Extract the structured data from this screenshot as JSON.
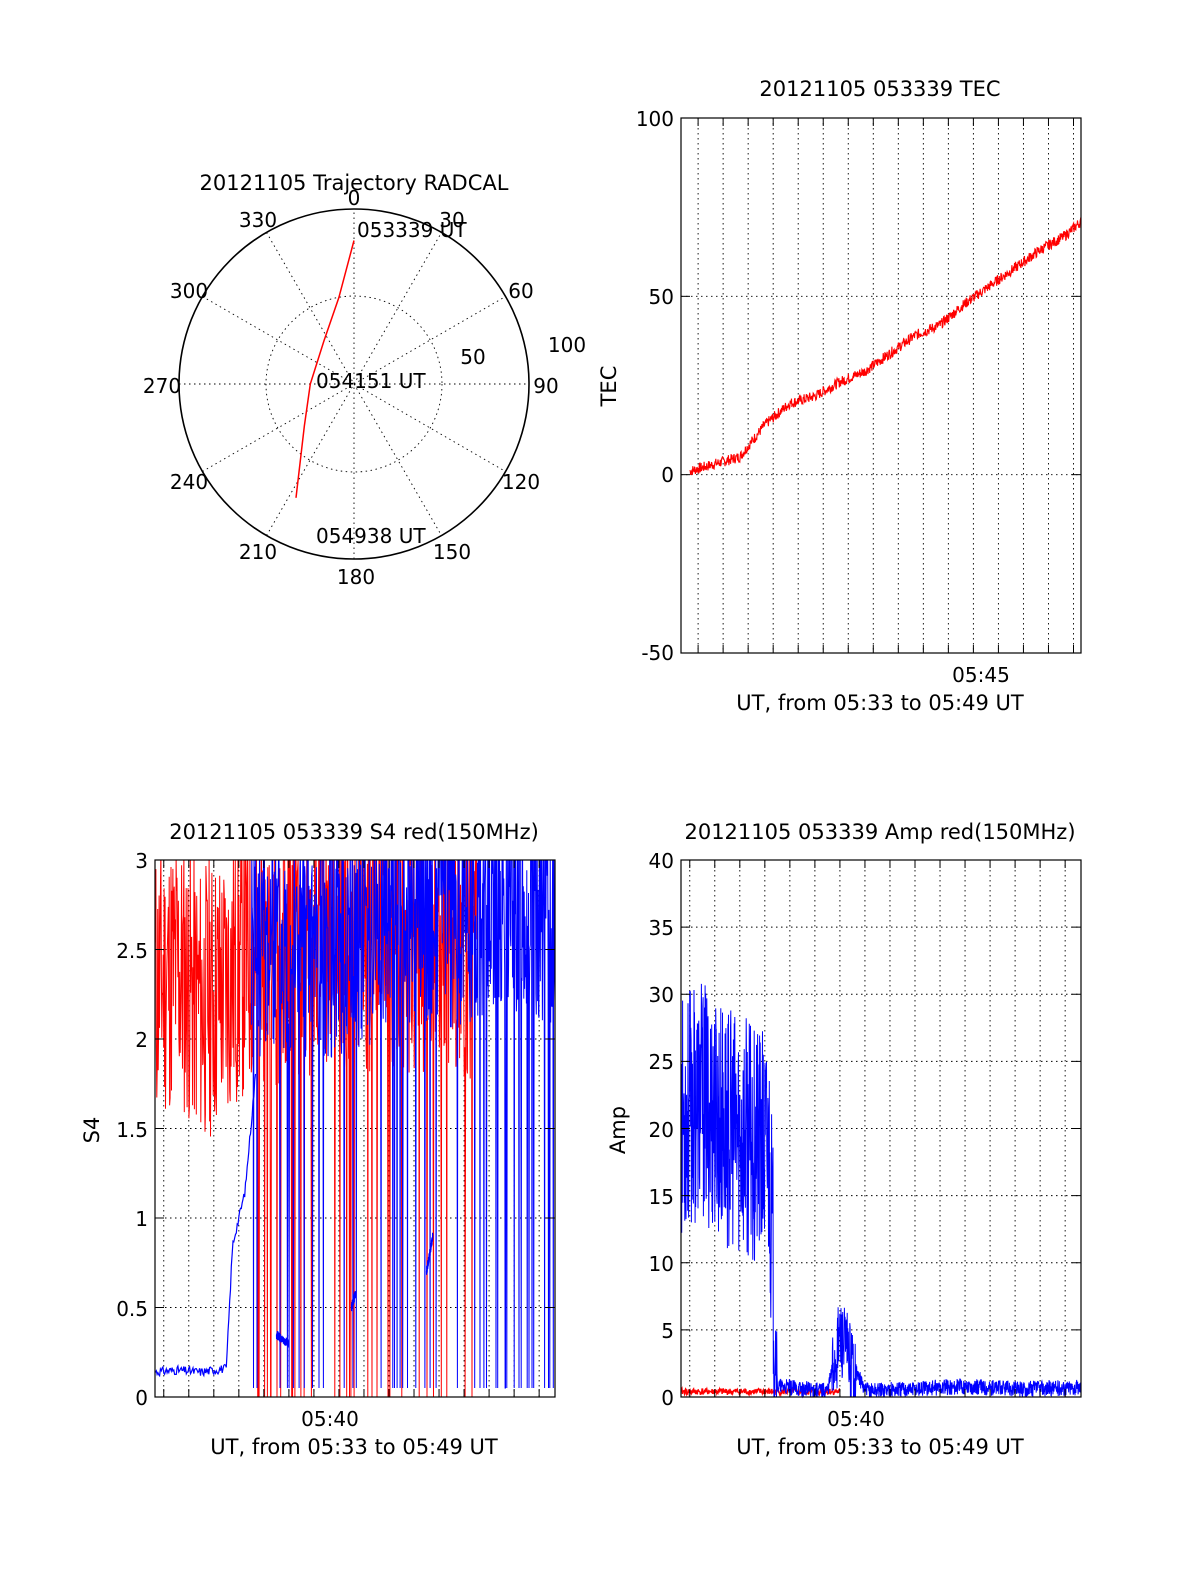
{
  "chart_data": [
    {
      "type": "polar",
      "title": "20121105 Trajectory RADCAL",
      "azimuth_labels": [
        "0",
        "30",
        "60",
        "90",
        "120",
        "150",
        "180",
        "210",
        "240",
        "270",
        "300",
        "330"
      ],
      "radial_labels": [
        "50",
        "100"
      ],
      "rlim": [
        0,
        100
      ],
      "grid": true,
      "series": [
        {
          "color": "#ff0000",
          "points": [
            {
              "az": 0,
              "zenith": 82
            },
            {
              "az": 350,
              "zenith": 50
            },
            {
              "az": 325,
              "zenith": 30
            },
            {
              "az": 270,
              "zenith": 25
            },
            {
              "az": 230,
              "zenith": 37
            },
            {
              "az": 207,
              "zenith": 73
            }
          ]
        }
      ],
      "annotations": [
        "053339 UT",
        "054151 UT",
        "054938 UT"
      ]
    },
    {
      "type": "line",
      "title": "20121105 053339 TEC",
      "xlabel": "UT, from 05:33 to 05:49 UT",
      "ylabel": "TEC",
      "xlim": [
        "05:33:39",
        "05:49:38"
      ],
      "ylim": [
        -50,
        100
      ],
      "yticks": [
        "-50",
        "0",
        "50",
        "100"
      ],
      "xticks": [
        "05:45"
      ],
      "grid": true,
      "series": [
        {
          "color": "#ff0000",
          "x": [
            "05:34:00",
            "05:35:00",
            "05:36:00",
            "05:37:00",
            "05:38:00",
            "05:39:00",
            "05:40:00",
            "05:41:00",
            "05:42:00",
            "05:43:00",
            "05:44:00",
            "05:45:00",
            "05:46:00",
            "05:47:00",
            "05:48:00",
            "05:49:00",
            "05:49:38"
          ],
          "values": [
            1,
            3,
            5,
            14,
            20,
            22,
            26,
            29,
            34,
            39,
            42,
            48,
            53,
            58,
            63,
            67,
            71
          ]
        }
      ]
    },
    {
      "type": "line",
      "title": "20121105 053339 S4 red(150MHz)",
      "xlabel": "UT, from 05:33 to 05:49 UT",
      "ylabel": "S4",
      "xlim": [
        "05:33:39",
        "05:49:38"
      ],
      "ylim": [
        0,
        3
      ],
      "yticks": [
        "0",
        "0.5",
        "1",
        "1.5",
        "2",
        "2.5",
        "3"
      ],
      "xticks": [
        "05:40"
      ],
      "grid": true,
      "series": [
        {
          "color": "#0000ff",
          "x": [
            "05:33:40",
            "05:34:30",
            "05:35:30",
            "05:36:30",
            "05:36:45",
            "05:37:15",
            "05:37:40"
          ],
          "values": [
            0.14,
            0.15,
            0.14,
            0.16,
            0.85,
            1.15,
            1.8
          ]
        },
        {
          "color": "#0000ff",
          "x": [
            "05:38:30",
            "05:38:45",
            "05:39:00"
          ],
          "values": [
            0.35,
            0.32,
            0.3
          ]
        },
        {
          "color": "#0000ff",
          "x": [
            "05:41:30",
            "05:41:40"
          ],
          "values": [
            0.5,
            0.58
          ]
        },
        {
          "color": "#0000ff",
          "x": [
            "05:44:30",
            "05:44:45"
          ],
          "values": [
            0.7,
            0.9
          ]
        },
        {
          "color": "#0000ff",
          "x": [
            "05:37:30",
            "05:39:00",
            "05:41:00",
            "05:43:00",
            "05:45:00",
            "05:47:00",
            "05:49:38"
          ],
          "values": [
            2.6,
            2.55,
            2.6,
            2.7,
            2.75,
            2.8,
            2.75
          ]
        },
        {
          "color": "#ff0000",
          "x": [
            "05:33:40",
            "05:34:30",
            "05:35:30",
            "05:36:30",
            "05:37:30",
            "05:39:00",
            "05:41:00",
            "05:43:00",
            "05:45:00",
            "05:46:30"
          ],
          "values": [
            2.3,
            2.4,
            2.2,
            2.3,
            2.5,
            2.55,
            2.6,
            2.6,
            2.6,
            2.55
          ]
        }
      ]
    },
    {
      "type": "line",
      "title": "20121105 053339 Amp red(150MHz)",
      "xlabel": "UT, from 05:33 to 05:49 UT",
      "ylabel": "Amp",
      "xlim": [
        "05:33:39",
        "05:49:38"
      ],
      "ylim": [
        0,
        40
      ],
      "yticks": [
        "0",
        "5",
        "10",
        "15",
        "20",
        "25",
        "30",
        "35",
        "40"
      ],
      "xticks": [
        "05:40"
      ],
      "grid": true,
      "series": [
        {
          "color": "#0000ff",
          "x": [
            "05:33:40",
            "05:34:30",
            "05:35:30",
            "05:36:30",
            "05:37:10",
            "05:37:30",
            "05:38:30",
            "05:39:30",
            "05:40:00",
            "05:41:00",
            "05:43:00",
            "05:45:00",
            "05:47:00",
            "05:49:38"
          ],
          "values": [
            21,
            22,
            20,
            19,
            18,
            0.8,
            0.6,
            0.5,
            4.5,
            0.5,
            0.6,
            0.8,
            0.6,
            0.7
          ]
        },
        {
          "color": "#ff0000",
          "x": [
            "05:33:40",
            "05:35:30",
            "05:37:10",
            "05:39:30",
            "05:40:00"
          ],
          "values": [
            0.4,
            0.4,
            0.4,
            0.4,
            0.4
          ]
        }
      ]
    }
  ]
}
